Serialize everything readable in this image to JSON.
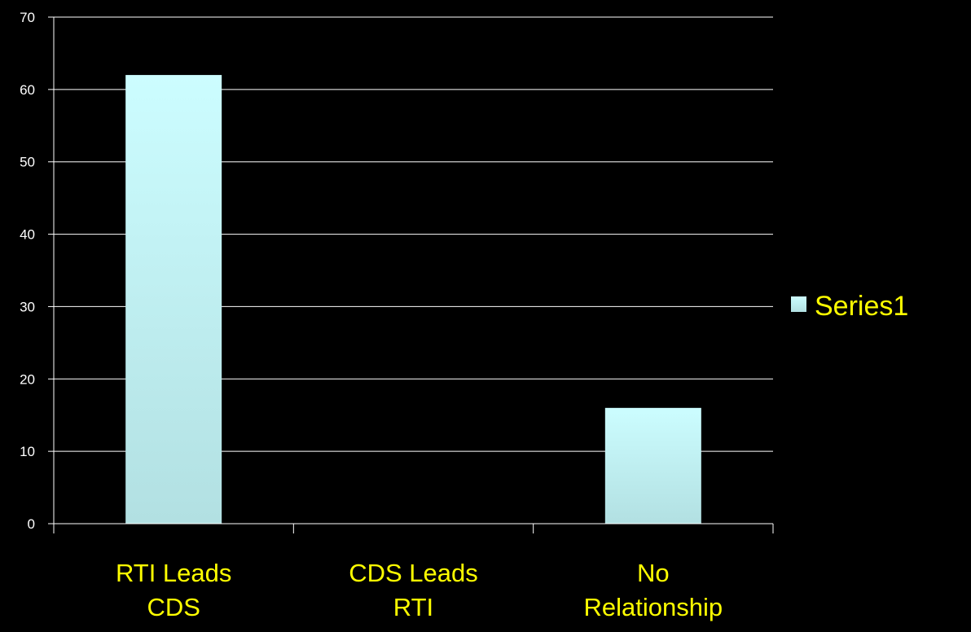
{
  "chart_data": {
    "type": "bar",
    "categories": [
      [
        "RTI Leads",
        "CDS"
      ],
      [
        "CDS Leads",
        "RTI"
      ],
      [
        "No",
        "Relationship"
      ]
    ],
    "series": [
      {
        "name": "Series1",
        "values": [
          62,
          0,
          16
        ]
      }
    ],
    "yticks": [
      "0",
      "10",
      "20",
      "30",
      "40",
      "50",
      "60",
      "70"
    ],
    "ylim": [
      0,
      70
    ],
    "grid": true,
    "legend": "right"
  },
  "colors": {
    "background": "#000000",
    "axis": "#ffffff",
    "gridline": "#ffffff",
    "bar_top": "#ccfdff",
    "bar_bottom": "#b2e0e2",
    "tick_text": "#ffffff",
    "category_text": "#ffff00",
    "legend_text": "#ffff00"
  }
}
